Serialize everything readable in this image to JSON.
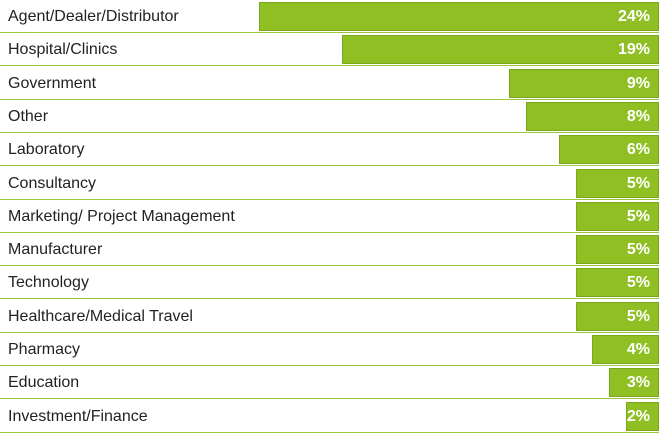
{
  "chart_data": {
    "type": "bar",
    "orientation": "horizontal",
    "categories": [
      "Agent/Dealer/Distributor",
      "Hospital/Clinics",
      "Government",
      "Other",
      "Laboratory",
      "Consultancy",
      "Marketing/ Project Management",
      "Manufacturer",
      "Technology",
      "Healthcare/Medical Travel",
      "Pharmacy",
      "Education",
      "Investment/Finance"
    ],
    "values": [
      24,
      19,
      9,
      8,
      6,
      5,
      5,
      5,
      5,
      5,
      4,
      3,
      2
    ],
    "value_labels": [
      "24%",
      "19%",
      "9%",
      "8%",
      "6%",
      "5%",
      "5%",
      "5%",
      "5%",
      "5%",
      "4%",
      "3%",
      "2%"
    ],
    "unit": "%",
    "title": "",
    "xlabel": "",
    "ylabel": "",
    "xlim": [
      0,
      24
    ],
    "grid": false,
    "legend": "none",
    "colors": {
      "bar": "#8fbf23",
      "bar_border": "#7aa81a",
      "row_line": "#9bc53d",
      "value_text": "#ffffff",
      "label_text": "#222222"
    }
  }
}
